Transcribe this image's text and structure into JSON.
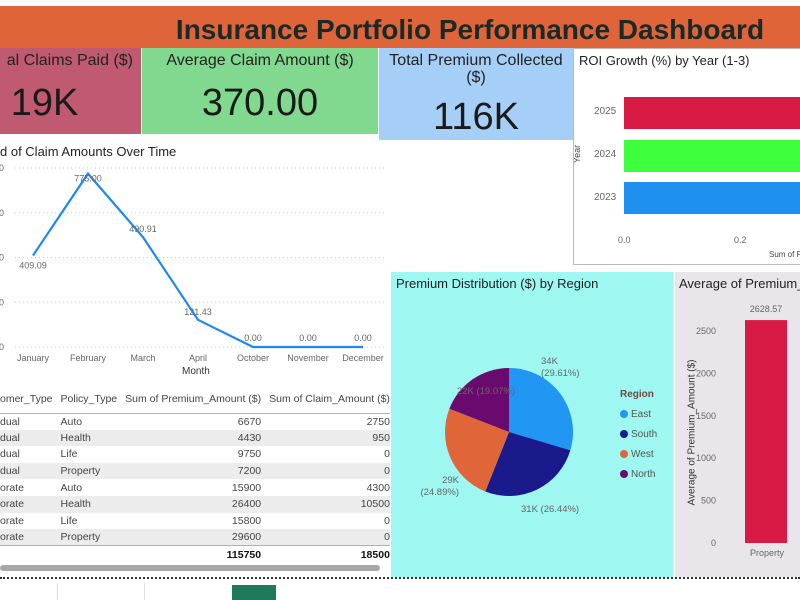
{
  "header": {
    "title": "Insurance Portfolio Performance Dashboard",
    "color": "#e0643a"
  },
  "kpis": [
    {
      "label": "al Claims Paid ($)",
      "value": "19K",
      "color": "#c05a70"
    },
    {
      "label": "Average Claim Amount ($)",
      "value": "370.00",
      "color": "#80d98e"
    },
    {
      "label": "Total Premium Collected ($)",
      "value": "116K",
      "color": "#a6cff8"
    }
  ],
  "roi_chart": {
    "title": "ROI Growth (%) by Year (1-3)",
    "ylabel": "Year",
    "xlabel": "Sum of R",
    "x_ticks": [
      "0.0",
      "0.2"
    ],
    "categories": [
      "2025",
      "2024",
      "2023"
    ],
    "colors": [
      "#d81b44",
      "#3dff3d",
      "#1e90f0"
    ]
  },
  "chart_data": [
    {
      "type": "line",
      "title": "d of Claim Amounts Over Time",
      "xlabel": "Month",
      "categories": [
        "January",
        "February",
        "March",
        "April",
        "October",
        "November",
        "December"
      ],
      "values": [
        409.09,
        775.0,
        490.91,
        121.43,
        0,
        0,
        0
      ],
      "labels": [
        "409.09",
        "775.00",
        "490.91",
        "121.43",
        "0.00",
        "0.00",
        "0.00"
      ],
      "y_ticks": [
        0,
        200,
        400,
        600,
        800
      ],
      "ylim": [
        0,
        800
      ],
      "grid": true,
      "color": "#1e88f0"
    },
    {
      "type": "pie",
      "title": "Premium Distribution ($) by Region",
      "legend_title": "Region",
      "legend_position": "right",
      "slices": [
        {
          "name": "East",
          "value": 29.61,
          "label": "34K (29.61%)",
          "color": "#2196f3"
        },
        {
          "name": "South",
          "value": 26.44,
          "label": "31K (26.44%)",
          "color": "#1a1a8c"
        },
        {
          "name": "West",
          "value": 24.89,
          "label": "29K (24.89%)",
          "color": "#e0663a"
        },
        {
          "name": "North",
          "value": 19.07,
          "label": "22K (19.07%)",
          "color": "#6b0a6e"
        }
      ]
    },
    {
      "type": "bar",
      "title": "Average of Premium_",
      "ylabel": "Average of Premium_Amount ($)",
      "categories": [
        "Property"
      ],
      "values": [
        2628.57
      ],
      "labels": [
        "2628.57"
      ],
      "y_ticks": [
        0,
        500,
        1000,
        1500,
        2000,
        2500
      ],
      "ylim": [
        0,
        2500
      ],
      "color": "#d81b44"
    }
  ],
  "table": {
    "headers": [
      "omer_Type",
      "Policy_Type",
      "Sum of Premium_Amount ($)",
      "Sum of Claim_Amount ($)"
    ],
    "rows": [
      [
        "dual",
        "Auto",
        "6670",
        "2750"
      ],
      [
        "dual",
        "Health",
        "4430",
        "950"
      ],
      [
        "dual",
        "Life",
        "9750",
        "0"
      ],
      [
        "dual",
        "Property",
        "7200",
        "0"
      ],
      [
        "orate",
        "Auto",
        "15900",
        "4300"
      ],
      [
        "orate",
        "Health",
        "26400",
        "10500"
      ],
      [
        "orate",
        "Life",
        "15800",
        "0"
      ],
      [
        "orate",
        "Property",
        "29600",
        "0"
      ]
    ],
    "totals": [
      "",
      "",
      "115750",
      "18500"
    ]
  }
}
